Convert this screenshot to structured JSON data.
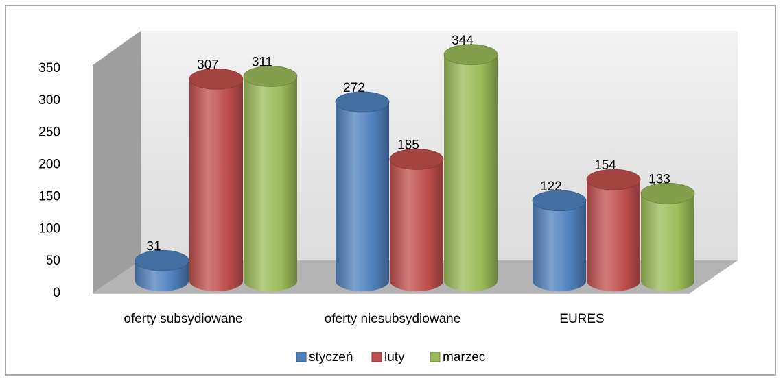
{
  "chart_data": {
    "type": "bar3d",
    "categories": [
      "oferty subsydiowane",
      "oferty niesubsydiowane",
      "EURES"
    ],
    "series": [
      {
        "name": "styczeń",
        "color": "#4f81bd",
        "values": [
          31,
          272,
          122
        ]
      },
      {
        "name": "luty",
        "color": "#c0504d",
        "values": [
          307,
          185,
          154
        ]
      },
      {
        "name": "marzec",
        "color": "#9bbb59",
        "values": [
          311,
          344,
          133
        ]
      }
    ],
    "ylim": [
      0,
      350
    ],
    "yticks": [
      0,
      50,
      100,
      150,
      200,
      250,
      300,
      350
    ],
    "legend": "bottom"
  }
}
